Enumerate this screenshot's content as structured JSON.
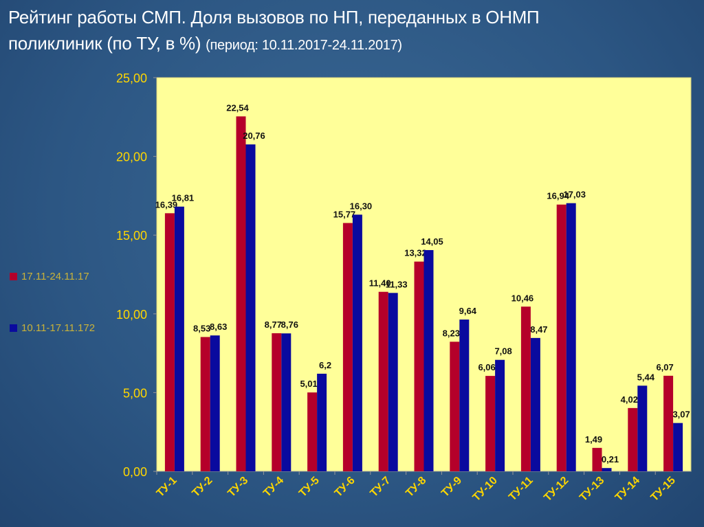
{
  "title": {
    "line1": "Рейтинг работы СМП. Доля вызовов по НП, переданных в ОНМП",
    "line2": "поликлиник (по ТУ,  в %)",
    "period": "(период: 10.11.2017-24.11.2017)"
  },
  "colors": {
    "series1": "#b5002a",
    "series2": "#0a0a9e",
    "plot_bg": "#ffff99",
    "axis_text": "#ffd700"
  },
  "chart_data": {
    "type": "bar",
    "title": "Рейтинг работы СМП. Доля вызовов по НП, переданных в ОНМП поликлиник (по ТУ, в %)",
    "categories": [
      "ТУ-1",
      "ТУ-2",
      "ТУ-3",
      "ТУ-4",
      "ТУ-5",
      "ТУ-6",
      "ТУ-7",
      "ТУ-8",
      "ТУ-9",
      "ТУ-10",
      "ТУ-11",
      "ТУ-12",
      "ТУ-13",
      "ТУ-14",
      "ТУ-15"
    ],
    "series": [
      {
        "name": "17.11-24.11.17",
        "values": [
          16.39,
          8.53,
          22.54,
          8.77,
          5.01,
          15.77,
          11.4,
          13.32,
          8.23,
          6.06,
          10.46,
          16.94,
          1.49,
          4.02,
          6.07
        ],
        "labels": [
          "16,39",
          "8,53",
          "22,54",
          "8,77",
          "5,01",
          "15,77",
          "11,40",
          "13,32",
          "8,23",
          "6,06",
          "10,46",
          "16,94",
          "1,49",
          "4,02",
          "6,07"
        ]
      },
      {
        "name": "10.11-17.11.172",
        "values": [
          16.81,
          8.63,
          20.76,
          8.76,
          6.2,
          16.3,
          11.33,
          14.05,
          9.64,
          7.08,
          8.47,
          17.03,
          0.21,
          5.44,
          3.07
        ],
        "labels": [
          "16,81",
          "8,63",
          "20,76",
          "8,76",
          "6,2",
          "16,30",
          "11,33",
          "14,05",
          "9,64",
          "7,08",
          "8,47",
          "17,03",
          "0,21",
          "5,44",
          "3,07"
        ]
      }
    ],
    "ylim": [
      0,
      25
    ],
    "yticks": [
      "0,00",
      "5,00",
      "10,00",
      "15,00",
      "20,00",
      "25,00"
    ],
    "xlabel": "",
    "ylabel": "",
    "legend": "left",
    "grid": false
  }
}
